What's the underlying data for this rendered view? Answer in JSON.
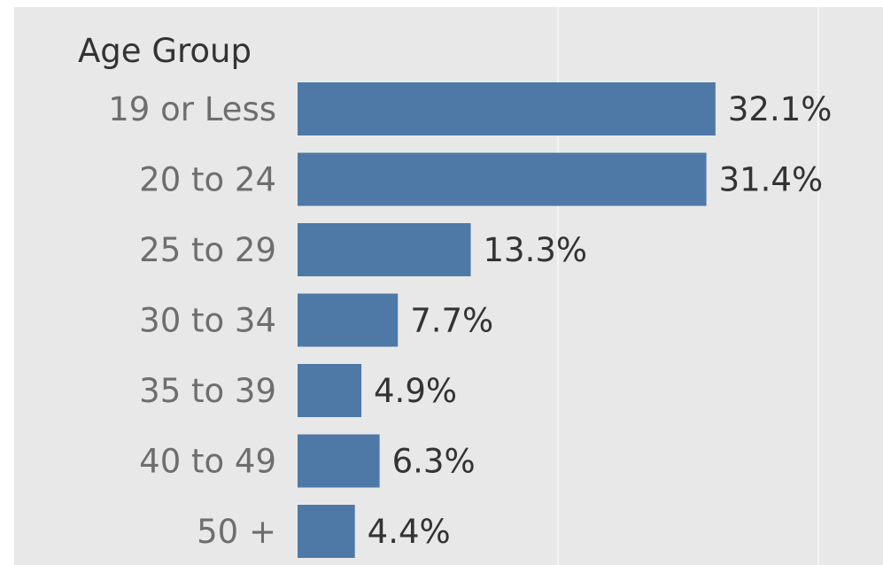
{
  "chart_data": {
    "type": "bar",
    "orientation": "horizontal",
    "header": "Age Group",
    "categories": [
      "19 or Less",
      "20 to 24",
      "25 to 29",
      "30 to 34",
      "35 to 39",
      "40 to 49",
      "50 +"
    ],
    "values": [
      32.1,
      31.4,
      13.3,
      7.7,
      4.9,
      6.3,
      4.4
    ],
    "value_labels": [
      "32.1%",
      "31.4%",
      "13.3%",
      "7.7%",
      "4.9%",
      "6.3%",
      "4.4%"
    ],
    "unit": "%",
    "xlim": [
      0,
      40
    ],
    "gridlines_at": [
      20,
      40
    ],
    "grid": true,
    "bar_color": "#4e79a7",
    "background_color": "#e8e8e8"
  }
}
